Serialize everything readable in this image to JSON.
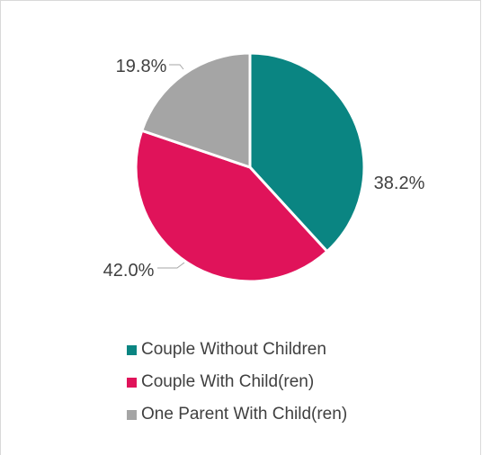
{
  "chart_data": {
    "type": "pie",
    "categories": [
      "Couple Without Children",
      "Couple With Child(ren)",
      "One Parent With Child(ren)"
    ],
    "values": [
      38.2,
      42.0,
      19.8
    ],
    "data_labels": [
      "38.2%",
      "42.0%",
      "19.8%"
    ],
    "colors": [
      "#0a8582",
      "#e0135a",
      "#a5a5a5"
    ],
    "title": "",
    "legend_position": "bottom"
  }
}
